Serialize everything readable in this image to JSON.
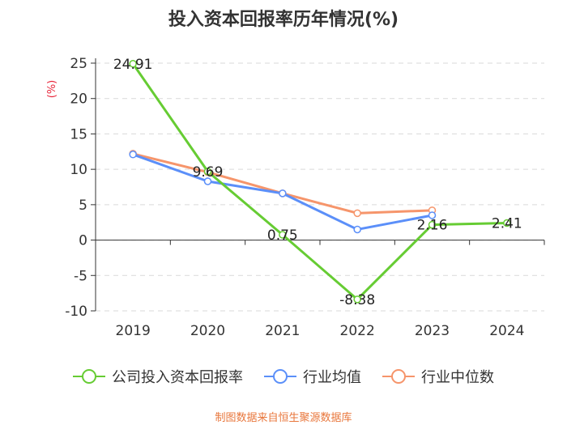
{
  "chart_data": {
    "type": "line",
    "title": "投入资本回报率历年情况(%)",
    "ylabel": "(%)",
    "categories": [
      "2019",
      "2020",
      "2021",
      "2022",
      "2023",
      "2024"
    ],
    "ylim": [
      -10,
      25
    ],
    "yticks": [
      25,
      20,
      15,
      10,
      5,
      0,
      -5,
      -10
    ],
    "series": [
      {
        "name": "公司投入资本回报率",
        "color": "#66cc33",
        "values": [
          24.91,
          9.69,
          0.75,
          -8.38,
          2.16,
          2.41
        ],
        "labels": [
          "24.91",
          "9.69",
          "0.75",
          "-8.38",
          "2.16",
          "2.41"
        ]
      },
      {
        "name": "行业均值",
        "color": "#5b8ff9",
        "values": [
          12.1,
          8.3,
          6.6,
          1.5,
          3.5,
          null
        ]
      },
      {
        "name": "行业中位数",
        "color": "#f6956b",
        "values": [
          12.2,
          9.6,
          6.6,
          3.8,
          4.2,
          null
        ]
      }
    ]
  },
  "source": "制图数据来自恒生聚源数据库"
}
